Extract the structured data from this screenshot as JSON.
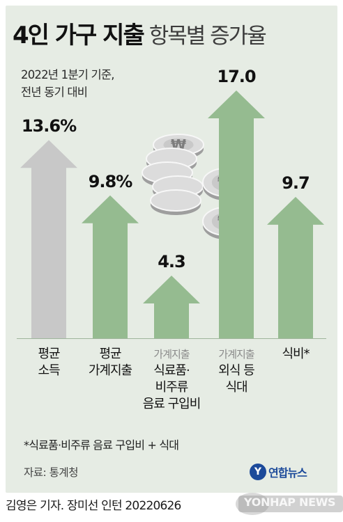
{
  "header": {
    "title_bold": "4인 가구 지출",
    "title_light": "항목별 증가율",
    "subtitle_line1": "2022년 1분기 기준,",
    "subtitle_line2": "전년 동기 대비"
  },
  "chart_data": {
    "type": "bar",
    "title": "4인 가구 지출 항목별 증가율",
    "categories": [
      "평균 소득",
      "평균 가계지출",
      "가계지출 식료품·비주류 음료 구입비",
      "가계지출 외식 등 식대",
      "식비*"
    ],
    "values": [
      13.6,
      9.8,
      4.3,
      17.0,
      9.7
    ],
    "value_labels": [
      "13.6%",
      "9.8%",
      "4.3",
      "17.0",
      "9.7"
    ],
    "colors": [
      "#c8c8c8",
      "#95bb90",
      "#95bb90",
      "#95bb90",
      "#95bb90"
    ],
    "ylim": [
      0,
      17.0
    ],
    "category_lines": [
      {
        "prefix": "",
        "lines": [
          "평균",
          "소득"
        ]
      },
      {
        "prefix": "",
        "lines": [
          "평균",
          "가계지출"
        ]
      },
      {
        "prefix": "가계지출",
        "lines": [
          "식료품·",
          "비주류",
          "음료 구입비"
        ]
      },
      {
        "prefix": "가계지출",
        "lines": [
          "외식 등",
          "식대"
        ]
      },
      {
        "prefix": "",
        "lines": [
          "식비*"
        ]
      }
    ]
  },
  "illustration": {
    "coin_symbol": "₩",
    "coin_color": "#dcdcdc"
  },
  "footnote": "*식료품·비주류 음료 구입비 + 식대",
  "source": "자료: 통계청",
  "logo": {
    "badge": "Y",
    "text": "연합뉴스"
  },
  "credit": "김영은 기자. 장미선 인턴  20220626",
  "watermark": "YONHAP NEWS"
}
